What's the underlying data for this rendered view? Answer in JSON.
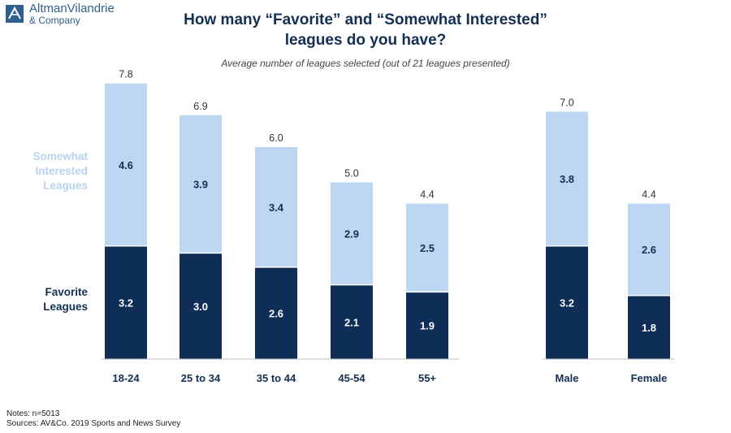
{
  "logo": {
    "icon": "company-logo-icon",
    "name": "AltmanVilandrie",
    "sub": "& Company",
    "color": "#2f5f8f"
  },
  "header": {
    "title_line1": "How many “Favorite” and “Somewhat Interested”",
    "title_line2": "leagues do you have?",
    "subtitle": "Average number of leagues selected (out of 21 leagues presented)"
  },
  "legend": {
    "somewhat_line1": "Somewhat",
    "somewhat_line2": "Interested",
    "somewhat_line3": "Leagues",
    "favorite_line1": "Favorite",
    "favorite_line2": "Leagues"
  },
  "chart_data": {
    "type": "bar",
    "stacked": true,
    "title": "How many “Favorite” and “Somewhat Interested” leagues do you have?",
    "subtitle": "Average number of leagues selected (out of 21 leagues presented)",
    "categories": [
      "18-24",
      "25 to 34",
      "35 to 44",
      "45-54",
      "55+",
      "Male",
      "Female"
    ],
    "groups": [
      {
        "name": "Age",
        "categories": [
          "18-24",
          "25 to 34",
          "35 to 44",
          "45-54",
          "55+"
        ]
      },
      {
        "name": "Gender",
        "categories": [
          "Male",
          "Female"
        ]
      }
    ],
    "series": [
      {
        "name": "Favorite Leagues",
        "color": "#0f2e57",
        "values": [
          3.2,
          3.0,
          2.6,
          2.1,
          1.9,
          3.2,
          1.8
        ]
      },
      {
        "name": "Somewhat Interested Leagues",
        "color": "#bdd7f2",
        "values": [
          4.6,
          3.9,
          3.4,
          2.9,
          2.5,
          3.8,
          2.6
        ]
      }
    ],
    "totals": [
      7.8,
      6.9,
      6.0,
      5.0,
      4.4,
      7.0,
      4.4
    ],
    "ylim": [
      0,
      8
    ],
    "xlabel": "",
    "ylabel": "",
    "grid": false,
    "legend_position": "left"
  },
  "footer": {
    "notes": "Notes: n=5013",
    "sources": "Sources: AV&Co. 2019 Sports and News Survey"
  }
}
